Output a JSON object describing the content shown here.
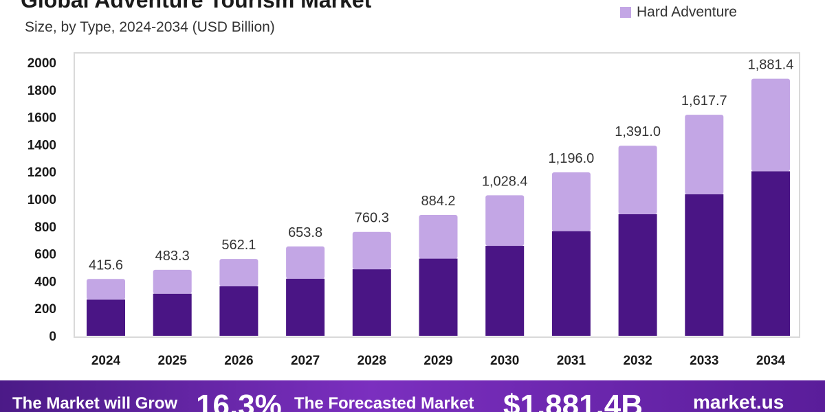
{
  "header": {
    "title": "Global Adventure Tourism Market",
    "subtitle": "Size, by Type, 2024-2034 (USD Billion)",
    "legend_label": "Hard Adventure"
  },
  "colors": {
    "base_series": "#4a1585",
    "hard_adventure": "#c3a6e5",
    "chart_border": "#d9d9d9"
  },
  "chart_data": {
    "type": "bar",
    "stacked": true,
    "categories": [
      "2024",
      "2025",
      "2026",
      "2027",
      "2028",
      "2029",
      "2030",
      "2031",
      "2032",
      "2033",
      "2034"
    ],
    "totals": [
      415.6,
      483.3,
      562.1,
      653.8,
      760.3,
      884.2,
      1028.4,
      1196.0,
      1391.0,
      1617.7,
      1881.4
    ],
    "total_labels": [
      "415.6",
      "483.3",
      "562.1",
      "653.8",
      "760.3",
      "884.2",
      "1,028.4",
      "1,196.0",
      "1,391.0",
      "1,617.7",
      "1,881.4"
    ],
    "series": [
      {
        "values": [
          265,
          308,
          362,
          418,
          487,
          565,
          658,
          766,
          890,
          1036,
          1204
        ]
      },
      {
        "name": "Hard Adventure",
        "values": [
          150.6,
          175.3,
          200.1,
          235.8,
          273.3,
          319.2,
          370.4,
          430.0,
          501.0,
          581.7,
          677.4
        ]
      }
    ],
    "yticks": [
      "0",
      "200",
      "400",
      "600",
      "800",
      "1000",
      "1200",
      "1400",
      "1600",
      "1800",
      "2000"
    ],
    "ylim": [
      0,
      2000
    ],
    "grid": false,
    "legend_position": "top-right"
  },
  "footer": {
    "grow_text": "The Market will Grow",
    "cagr": "16.3%",
    "forecast_text": "The Forecasted Market",
    "forecast_value": "$1,881.4B",
    "brand": "market.us"
  }
}
